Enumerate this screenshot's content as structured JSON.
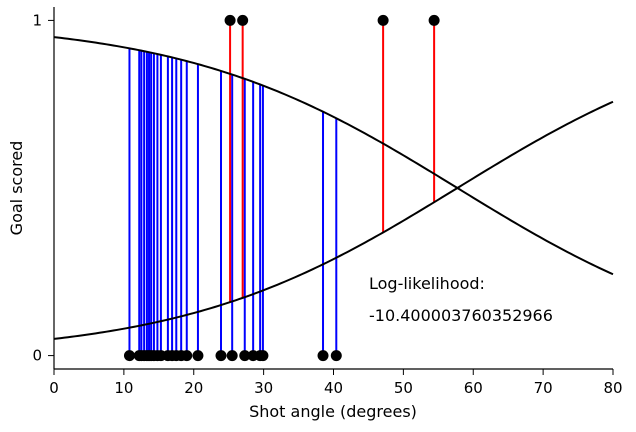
{
  "chart_data": {
    "type": "scatter",
    "title": "",
    "xlabel": "Shot angle (degrees)",
    "ylabel": "Goal scored",
    "xlim": [
      0,
      80
    ],
    "ylim": [
      -0.04,
      1.04
    ],
    "xticks": [
      "0",
      "10",
      "20",
      "30",
      "40",
      "50",
      "60",
      "70",
      "80"
    ],
    "yticks": [
      "0",
      "1"
    ],
    "grid": false,
    "colors": {
      "miss": "#0000ff",
      "goal": "#ff0000",
      "curve": "#000000",
      "point": "#000000"
    },
    "series": [
      {
        "y": 0,
        "x": [
          10.8,
          12.2,
          12.5,
          12.9,
          13.3,
          13.6,
          13.9,
          14.3,
          14.8,
          15.3,
          16.3,
          16.9,
          17.5,
          18.2,
          19.0,
          20.6,
          23.9,
          25.5,
          27.3,
          28.5,
          29.5,
          29.9,
          38.5,
          40.4
        ]
      },
      {
        "y": 1,
        "x": [
          25.2,
          27.0,
          47.1,
          54.4
        ]
      }
    ],
    "curves": {
      "p_goal": {
        "intercept": -2.95,
        "slope": 0.0511
      },
      "p_miss": {
        "intercept": -2.95,
        "slope": 0.0511,
        "complement": true
      }
    },
    "annotation": {
      "label": "Log-likelihood:",
      "value": "-10.400003760352966"
    }
  }
}
